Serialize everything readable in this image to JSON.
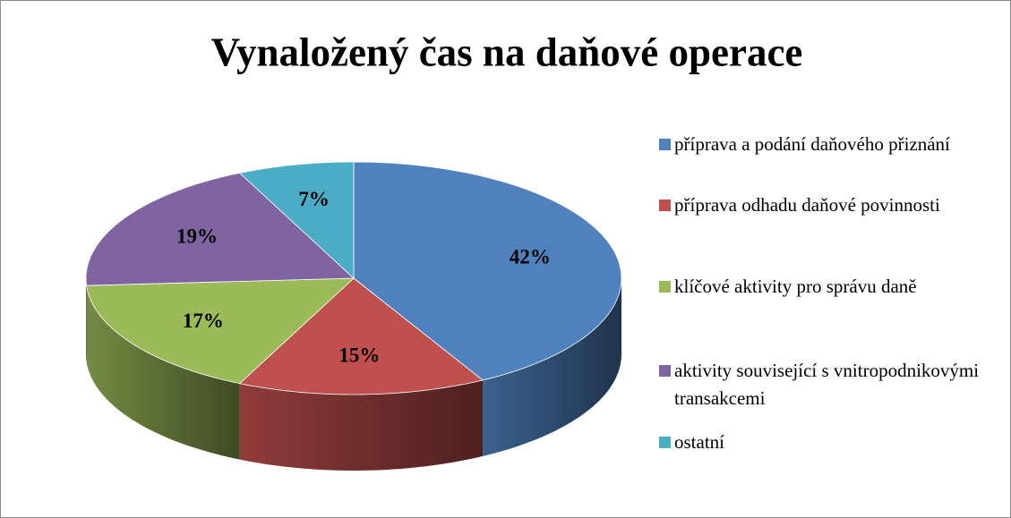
{
  "chart_data": {
    "type": "pie",
    "title": "Vynaložený čas na daňové operace",
    "categories": [
      "příprava a podání daňového přiznání",
      "příprava odhadu daňové povinnosti",
      "klíčové aktivity pro správu daně",
      "aktivity související s vnitropodnikovými transakcemi",
      "ostatní"
    ],
    "values": [
      42,
      15,
      17,
      19,
      7
    ],
    "value_labels": [
      "42%",
      "15%",
      "17%",
      "19%",
      "7%"
    ],
    "colors": [
      "#4f81bd",
      "#c0504d",
      "#9bbb59",
      "#8064a2",
      "#4bacc6"
    ],
    "legend": "right"
  }
}
